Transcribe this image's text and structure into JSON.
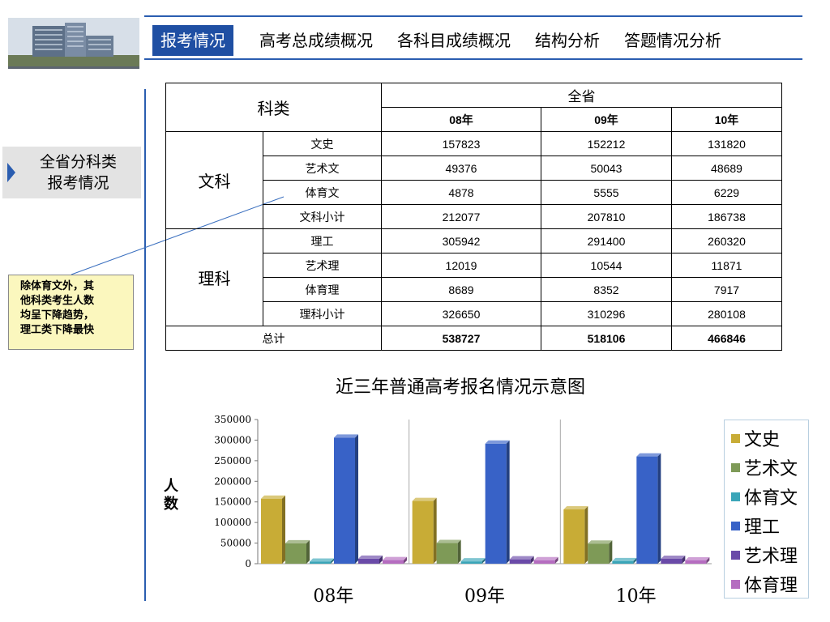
{
  "nav": {
    "items": [
      {
        "label": "报考情况",
        "active": true
      },
      {
        "label": "高考总成绩概况",
        "active": false
      },
      {
        "label": "各科目成绩概况",
        "active": false
      },
      {
        "label": "结构分析",
        "active": false
      },
      {
        "label": "答题情况分析",
        "active": false
      }
    ]
  },
  "sidebar": {
    "label": "全省分科类\n报考情况"
  },
  "note": {
    "text": "除体育文外，其\n他科类考生人数\n均呈下降趋势，\n理工类下降最快"
  },
  "table": {
    "header_category": "科类",
    "header_province": "全省",
    "years": [
      "08年",
      "09年",
      "10年"
    ],
    "groups": [
      {
        "name": "文科",
        "rows": [
          {
            "label": "文史",
            "values": [
              "157823",
              "152212",
              "131820"
            ]
          },
          {
            "label": "艺术文",
            "values": [
              "49376",
              "50043",
              "48689"
            ]
          },
          {
            "label": "体育文",
            "values": [
              "4878",
              "5555",
              "6229"
            ]
          },
          {
            "label": "文科小计",
            "values": [
              "212077",
              "207810",
              "186738"
            ]
          }
        ]
      },
      {
        "name": "理科",
        "rows": [
          {
            "label": "理工",
            "values": [
              "305942",
              "291400",
              "260320"
            ]
          },
          {
            "label": "艺术理",
            "values": [
              "12019",
              "10544",
              "11871"
            ]
          },
          {
            "label": "体育理",
            "values": [
              "8689",
              "8352",
              "7917"
            ]
          },
          {
            "label": "理科小计",
            "values": [
              "326650",
              "310296",
              "280108"
            ]
          }
        ]
      }
    ],
    "total": {
      "label": "总计",
      "values": [
        "538727",
        "518106",
        "466846"
      ]
    }
  },
  "chart_data": {
    "type": "bar",
    "title": "近三年普通高考报名情况示意图",
    "ylabel": "人\n数",
    "xlabel": "",
    "categories": [
      "08年",
      "09年",
      "10年"
    ],
    "ylim": [
      0,
      350000
    ],
    "yticks": [
      0,
      50000,
      100000,
      150000,
      200000,
      250000,
      300000,
      350000
    ],
    "legend_position": "right",
    "style": "3d-clustered",
    "series": [
      {
        "name": "文史",
        "color": "#c8ac36",
        "values": [
          157823,
          152212,
          131820
        ]
      },
      {
        "name": "艺术文",
        "color": "#7e9a57",
        "values": [
          49376,
          50043,
          48689
        ]
      },
      {
        "name": "体育文",
        "color": "#3aa5b8",
        "values": [
          4878,
          5555,
          6229
        ]
      },
      {
        "name": "理工",
        "color": "#3862c7",
        "values": [
          305942,
          291400,
          260320
        ]
      },
      {
        "name": "艺术理",
        "color": "#6a4aa8",
        "values": [
          12019,
          10544,
          11871
        ]
      },
      {
        "name": "体育理",
        "color": "#b56dc0",
        "values": [
          8689,
          8352,
          7917
        ]
      }
    ]
  }
}
